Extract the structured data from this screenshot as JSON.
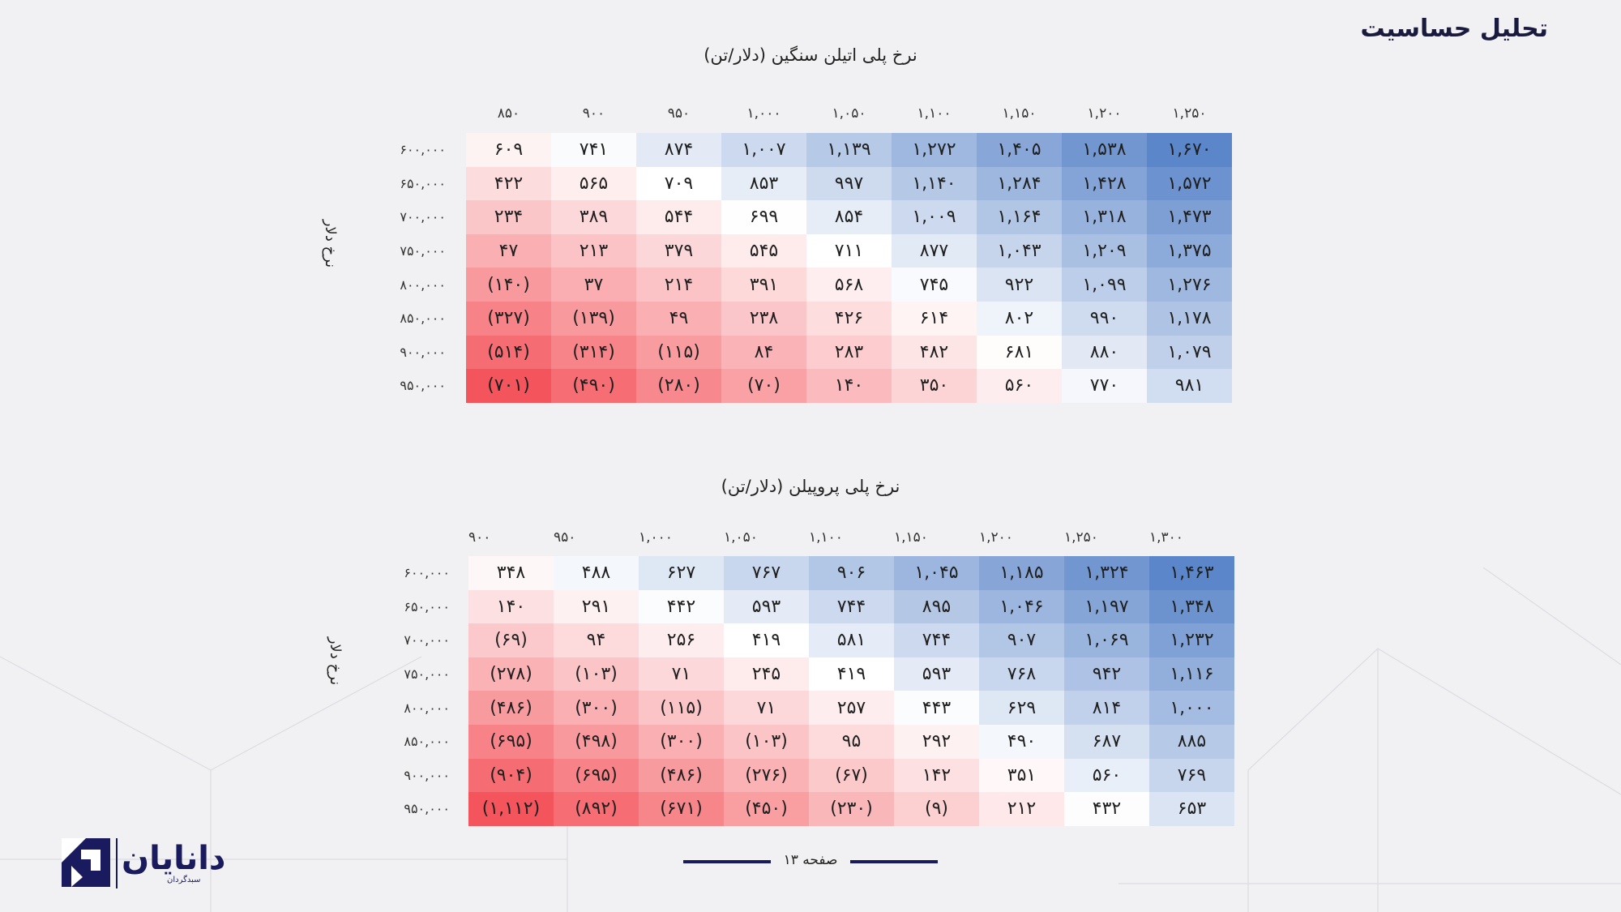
{
  "page": {
    "title": "تحلیل حساسیت",
    "page_label": "صفحه ۱۳"
  },
  "brand": {
    "name": "دانایان",
    "tagline": "سبدگردان",
    "color": "#1a1a5e"
  },
  "tables": [
    {
      "title": "نرخ پلی اتیلن سنگین (دلار/تن)",
      "row_axis_label": "نرخ دلار",
      "columns": [
        "۸۵۰",
        "۹۰۰",
        "۹۵۰",
        "۱,۰۰۰",
        "۱,۰۵۰",
        "۱,۱۰۰",
        "۱,۱۵۰",
        "۱,۲۰۰",
        "۱,۲۵۰"
      ],
      "rows": [
        "۶۰۰,۰۰۰",
        "۶۵۰,۰۰۰",
        "۷۰۰,۰۰۰",
        "۷۵۰,۰۰۰",
        "۸۰۰,۰۰۰",
        "۸۵۰,۰۰۰",
        "۹۰۰,۰۰۰",
        "۹۵۰,۰۰۰"
      ],
      "values": [
        [
          609,
          741,
          874,
          1007,
          1139,
          1272,
          1405,
          1538,
          1670
        ],
        [
          422,
          565,
          709,
          853,
          997,
          1140,
          1284,
          1428,
          1572
        ],
        [
          234,
          389,
          544,
          699,
          854,
          1009,
          1164,
          1318,
          1473
        ],
        [
          47,
          213,
          379,
          545,
          711,
          877,
          1043,
          1209,
          1375
        ],
        [
          -140,
          37,
          214,
          391,
          568,
          745,
          922,
          1099,
          1276
        ],
        [
          -327,
          -139,
          49,
          238,
          426,
          614,
          802,
          990,
          1178
        ],
        [
          -514,
          -314,
          -115,
          84,
          283,
          482,
          681,
          880,
          1079
        ],
        [
          -701,
          -490,
          -280,
          -70,
          140,
          350,
          560,
          770,
          981
        ]
      ],
      "cells": [
        [
          "۶۰۹",
          "۷۴۱",
          "۸۷۴",
          "۱,۰۰۷",
          "۱,۱۳۹",
          "۱,۲۷۲",
          "۱,۴۰۵",
          "۱,۵۳۸",
          "۱,۶۷۰"
        ],
        [
          "۴۲۲",
          "۵۶۵",
          "۷۰۹",
          "۸۵۳",
          "۹۹۷",
          "۱,۱۴۰",
          "۱,۲۸۴",
          "۱,۴۲۸",
          "۱,۵۷۲"
        ],
        [
          "۲۳۴",
          "۳۸۹",
          "۵۴۴",
          "۶۹۹",
          "۸۵۴",
          "۱,۰۰۹",
          "۱,۱۶۴",
          "۱,۳۱۸",
          "۱,۴۷۳"
        ],
        [
          "۴۷",
          "۲۱۳",
          "۳۷۹",
          "۵۴۵",
          "۷۱۱",
          "۸۷۷",
          "۱,۰۴۳",
          "۱,۲۰۹",
          "۱,۳۷۵"
        ],
        [
          "(۱۴۰)",
          "۳۷",
          "۲۱۴",
          "۳۹۱",
          "۵۶۸",
          "۷۴۵",
          "۹۲۲",
          "۱,۰۹۹",
          "۱,۲۷۶"
        ],
        [
          "(۳۲۷)",
          "(۱۳۹)",
          "۴۹",
          "۲۳۸",
          "۴۲۶",
          "۶۱۴",
          "۸۰۲",
          "۹۹۰",
          "۱,۱۷۸"
        ],
        [
          "(۵۱۴)",
          "(۳۱۴)",
          "(۱۱۵)",
          "۸۴",
          "۲۸۳",
          "۴۸۲",
          "۶۸۱",
          "۸۸۰",
          "۱,۰۷۹"
        ],
        [
          "(۷۰۱)",
          "(۴۹۰)",
          "(۲۸۰)",
          "(۷۰)",
          "۱۴۰",
          "۳۵۰",
          "۵۶۰",
          "۷۷۰",
          "۹۸۱"
        ]
      ]
    },
    {
      "title": "نرخ پلی پروپیلن (دلار/تن)",
      "row_axis_label": "نرخ دلار",
      "columns": [
        "۹۰۰",
        "۹۵۰",
        "۱,۰۰۰",
        "۱,۰۵۰",
        "۱,۱۰۰",
        "۱,۱۵۰",
        "۱,۲۰۰",
        "۱,۲۵۰",
        "۱,۳۰۰"
      ],
      "rows": [
        "۶۰۰,۰۰۰",
        "۶۵۰,۰۰۰",
        "۷۰۰,۰۰۰",
        "۷۵۰,۰۰۰",
        "۸۰۰,۰۰۰",
        "۸۵۰,۰۰۰",
        "۹۰۰,۰۰۰",
        "۹۵۰,۰۰۰"
      ],
      "values": [
        [
          348,
          488,
          627,
          767,
          906,
          1045,
          1185,
          1324,
          1463
        ],
        [
          140,
          291,
          442,
          593,
          744,
          895,
          1046,
          1197,
          1348
        ],
        [
          -69,
          94,
          256,
          419,
          581,
          744,
          907,
          1069,
          1232
        ],
        [
          -278,
          -103,
          71,
          245,
          419,
          593,
          768,
          942,
          1116
        ],
        [
          -486,
          -300,
          -115,
          71,
          257,
          443,
          629,
          814,
          1000
        ],
        [
          -695,
          -498,
          -300,
          -103,
          95,
          292,
          490,
          687,
          885
        ],
        [
          -904,
          -695,
          -486,
          -276,
          -67,
          142,
          351,
          560,
          769
        ],
        [
          -1112,
          -892,
          -671,
          -450,
          -230,
          -9,
          212,
          432,
          653
        ]
      ],
      "cells": [
        [
          "۳۴۸",
          "۴۸۸",
          "۶۲۷",
          "۷۶۷",
          "۹۰۶",
          "۱,۰۴۵",
          "۱,۱۸۵",
          "۱,۳۲۴",
          "۱,۴۶۳"
        ],
        [
          "۱۴۰",
          "۲۹۱",
          "۴۴۲",
          "۵۹۳",
          "۷۴۴",
          "۸۹۵",
          "۱,۰۴۶",
          "۱,۱۹۷",
          "۱,۳۴۸"
        ],
        [
          "(۶۹)",
          "۹۴",
          "۲۵۶",
          "۴۱۹",
          "۵۸۱",
          "۷۴۴",
          "۹۰۷",
          "۱,۰۶۹",
          "۱,۲۳۲"
        ],
        [
          "(۲۷۸)",
          "(۱۰۳)",
          "۷۱",
          "۲۴۵",
          "۴۱۹",
          "۵۹۳",
          "۷۶۸",
          "۹۴۲",
          "۱,۱۱۶"
        ],
        [
          "(۴۸۶)",
          "(۳۰۰)",
          "(۱۱۵)",
          "۷۱",
          "۲۵۷",
          "۴۴۳",
          "۶۲۹",
          "۸۱۴",
          "۱,۰۰۰"
        ],
        [
          "(۶۹۵)",
          "(۴۹۸)",
          "(۳۰۰)",
          "(۱۰۳)",
          "۹۵",
          "۲۹۲",
          "۴۹۰",
          "۶۸۷",
          "۸۸۵"
        ],
        [
          "(۹۰۴)",
          "(۶۹۵)",
          "(۴۸۶)",
          "(۲۷۶)",
          "(۶۷)",
          "۱۴۲",
          "۳۵۱",
          "۵۶۰",
          "۷۶۹"
        ],
        [
          "(۱,۱۱۲)",
          "(۸۹۲)",
          "(۶۷۱)",
          "(۴۵۰)",
          "(۲۳۰)",
          "(۹)",
          "۲۱۲",
          "۴۳۲",
          "۶۵۳"
        ]
      ]
    }
  ],
  "colors": {
    "positive_high": "#5b86c9",
    "neutral": "#ffffff",
    "negative_low": "#f4555c",
    "footer": "#1a1a5e"
  }
}
